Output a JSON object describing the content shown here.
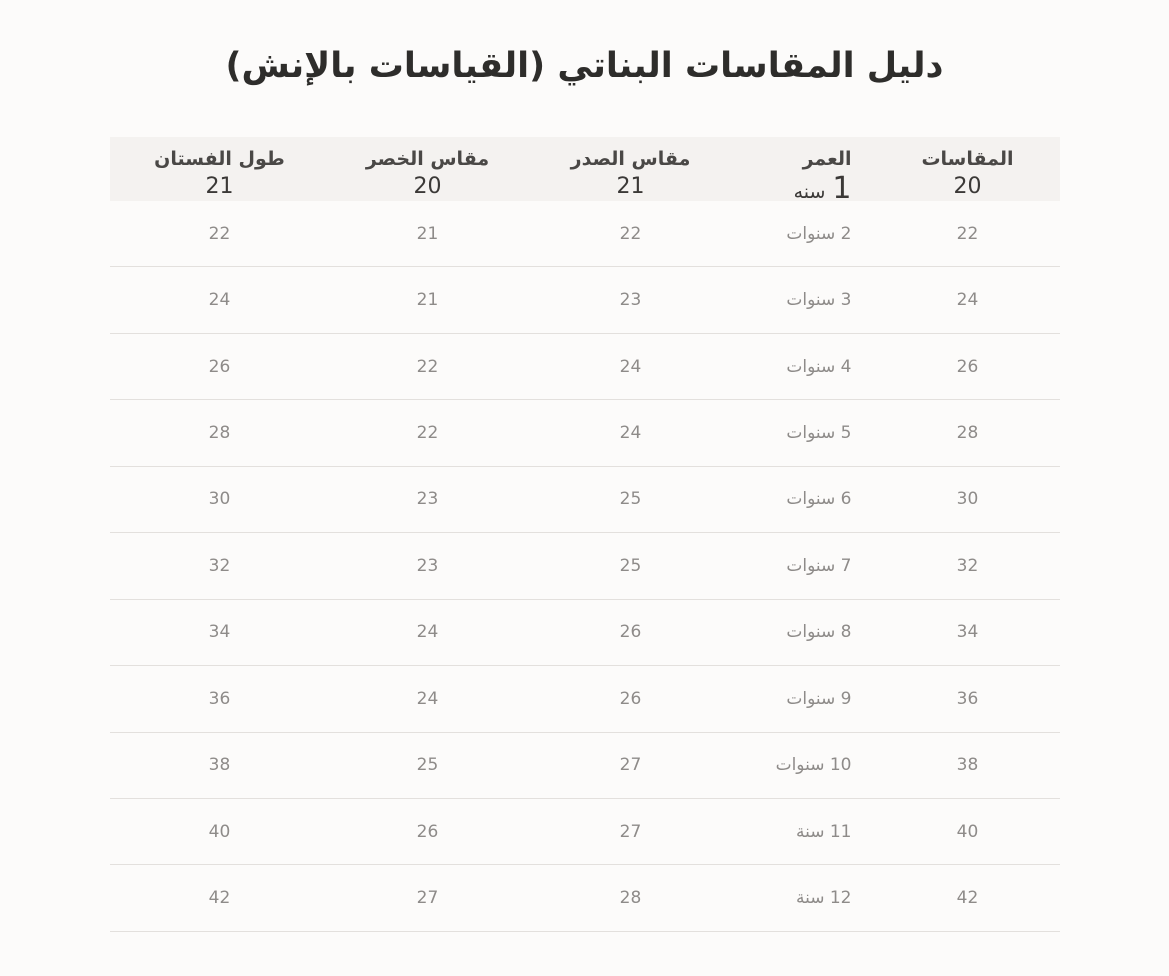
{
  "title": "دليل المقاسات البناتي (القياسات بالإنش)",
  "chart_data": {
    "type": "table",
    "title": "دليل المقاسات البناتي (القياسات بالإنش)",
    "direction": "rtl",
    "columns": [
      "المقاسات",
      "العمر",
      "مقاس الصدر",
      "مقاس الخصر",
      "طول الفستان"
    ],
    "column_keys": [
      "size",
      "age",
      "chest",
      "waist",
      "dress_length"
    ],
    "rows": [
      {
        "size": "20",
        "age": "1 سنه",
        "chest": "21",
        "waist": "20",
        "dress_length": "21"
      },
      {
        "size": "22",
        "age": "2 سنوات",
        "chest": "22",
        "waist": "21",
        "dress_length": "22"
      },
      {
        "size": "24",
        "age": "3 سنوات",
        "chest": "23",
        "waist": "21",
        "dress_length": "24"
      },
      {
        "size": "26",
        "age": "4 سنوات",
        "chest": "24",
        "waist": "22",
        "dress_length": "26"
      },
      {
        "size": "28",
        "age": "5 سنوات",
        "chest": "24",
        "waist": "22",
        "dress_length": "28"
      },
      {
        "size": "30",
        "age": "6 سنوات",
        "chest": "25",
        "waist": "23",
        "dress_length": "30"
      },
      {
        "size": "32",
        "age": "7 سنوات",
        "chest": "25",
        "waist": "23",
        "dress_length": "32"
      },
      {
        "size": "34",
        "age": "8 سنوات",
        "chest": "26",
        "waist": "24",
        "dress_length": "34"
      },
      {
        "size": "36",
        "age": "9 سنوات",
        "chest": "26",
        "waist": "24",
        "dress_length": "36"
      },
      {
        "size": "38",
        "age": "10 سنوات",
        "chest": "27",
        "waist": "25",
        "dress_length": "38"
      },
      {
        "size": "40",
        "age": "11 سنة",
        "chest": "27",
        "waist": "26",
        "dress_length": "40"
      },
      {
        "size": "42",
        "age": "12 سنة",
        "chest": "28",
        "waist": "27",
        "dress_length": "42"
      }
    ],
    "layout_hints": {
      "header_band_contains_first_row": true,
      "grid": "horizontal row dividers only"
    }
  },
  "colors": {
    "page_bg": "#fcfbfa",
    "band_bg": "#f4f2f0",
    "title_text": "#2e2d2b",
    "header_text": "#4a4846",
    "band_value_text": "#3b3937",
    "row_text": "#8e8b89",
    "divider": "#e3e0dd"
  }
}
